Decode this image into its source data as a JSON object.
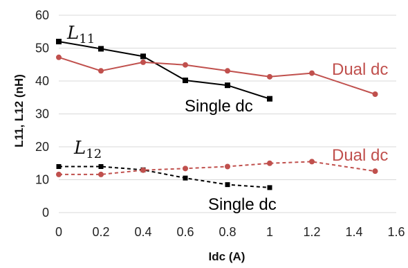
{
  "chart_data": {
    "type": "line",
    "title": "",
    "xlabel": "Idc (A)",
    "ylabel": "L11, L12 (nH)",
    "xlim": [
      0,
      1.6
    ],
    "ylim": [
      0,
      60
    ],
    "xticks": [
      "0",
      "0.2",
      "0.4",
      "0.6",
      "0.8",
      "1",
      "1.2",
      "1.4",
      "1.6"
    ],
    "yticks": [
      "0",
      "10",
      "20",
      "30",
      "40",
      "50",
      "60"
    ],
    "grid": "horizontal",
    "legend": "none",
    "series": [
      {
        "key": "l11_single",
        "color": "#000000",
        "marker": "square",
        "dash": "solid",
        "x": [
          0,
          0.2,
          0.4,
          0.6,
          0.8,
          1.0
        ],
        "y": [
          52,
          49.8,
          47.5,
          40.2,
          38.7,
          34.6
        ]
      },
      {
        "key": "l11_dual",
        "color": "#c0504d",
        "marker": "circle",
        "dash": "solid",
        "x": [
          0,
          0.2,
          0.4,
          0.6,
          0.8,
          1.0,
          1.2,
          1.5
        ],
        "y": [
          47.2,
          43.1,
          45.7,
          44.9,
          43.1,
          41.3,
          42.4,
          36.0
        ]
      },
      {
        "key": "l12_single",
        "color": "#000000",
        "marker": "square",
        "dash": "dashed",
        "x": [
          0,
          0.2,
          0.4,
          0.6,
          0.8,
          1.0
        ],
        "y": [
          14.0,
          14.0,
          13.0,
          10.5,
          8.5,
          7.6
        ]
      },
      {
        "key": "l12_dual",
        "color": "#c0504d",
        "marker": "circle",
        "dash": "dashed",
        "x": [
          0,
          0.2,
          0.4,
          0.6,
          0.8,
          1.0,
          1.2,
          1.5
        ],
        "y": [
          11.6,
          11.6,
          12.9,
          13.4,
          14.0,
          15.0,
          15.5,
          12.6
        ]
      }
    ],
    "annotations": [
      {
        "key": "l11",
        "base": "L",
        "sub": "11",
        "color": "#111111"
      },
      {
        "key": "single-upper",
        "text": "Single dc",
        "color": "#000000"
      },
      {
        "key": "dual-upper",
        "text": "Dual dc",
        "color": "#c0504d"
      },
      {
        "key": "l12",
        "base": "L",
        "sub": "12",
        "color": "#111111"
      },
      {
        "key": "dual-lower",
        "text": "Dual dc",
        "color": "#c0504d"
      },
      {
        "key": "single-lower",
        "text": "Single dc",
        "color": "#000000"
      }
    ]
  }
}
